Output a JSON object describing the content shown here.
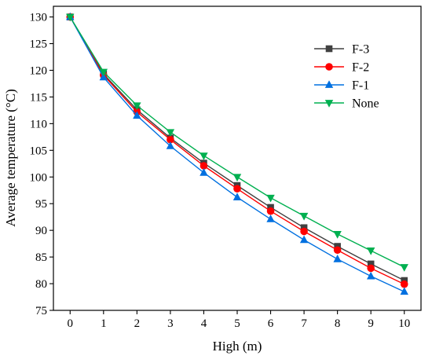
{
  "chart_data": {
    "type": "line",
    "xlabel": "High (m)",
    "ylabel": "Average temperature (°C)",
    "xlim": [
      -0.5,
      10.5
    ],
    "ylim": [
      75,
      132
    ],
    "x": [
      0,
      1,
      2,
      3,
      4,
      5,
      6,
      7,
      8,
      9,
      10
    ],
    "x_ticks": [
      0,
      1,
      2,
      3,
      4,
      5,
      6,
      7,
      8,
      9,
      10
    ],
    "y_ticks": [
      75,
      80,
      85,
      90,
      95,
      100,
      105,
      110,
      115,
      120,
      125,
      130
    ],
    "grid": false,
    "legend_position": "top-right",
    "series": [
      {
        "name": "F-3",
        "color": "#404040",
        "marker": "square",
        "values": [
          130.0,
          119.3,
          112.6,
          107.3,
          102.6,
          98.4,
          94.3,
          90.5,
          87.0,
          83.7,
          80.6
        ]
      },
      {
        "name": "F-2",
        "color": "#ff0000",
        "marker": "circle",
        "values": [
          130.0,
          119.1,
          112.2,
          107.0,
          102.1,
          97.8,
          93.6,
          89.8,
          86.3,
          82.9,
          79.9
        ]
      },
      {
        "name": "F-1",
        "color": "#0070e0",
        "marker": "triangle-up",
        "values": [
          130.0,
          118.7,
          111.5,
          105.8,
          100.8,
          96.2,
          92.1,
          88.2,
          84.6,
          81.4,
          78.5
        ]
      },
      {
        "name": "None",
        "color": "#00b050",
        "marker": "triangle-down",
        "values": [
          130.0,
          119.7,
          113.4,
          108.4,
          104.0,
          100.0,
          96.1,
          92.7,
          89.3,
          86.2,
          83.1
        ]
      }
    ]
  }
}
